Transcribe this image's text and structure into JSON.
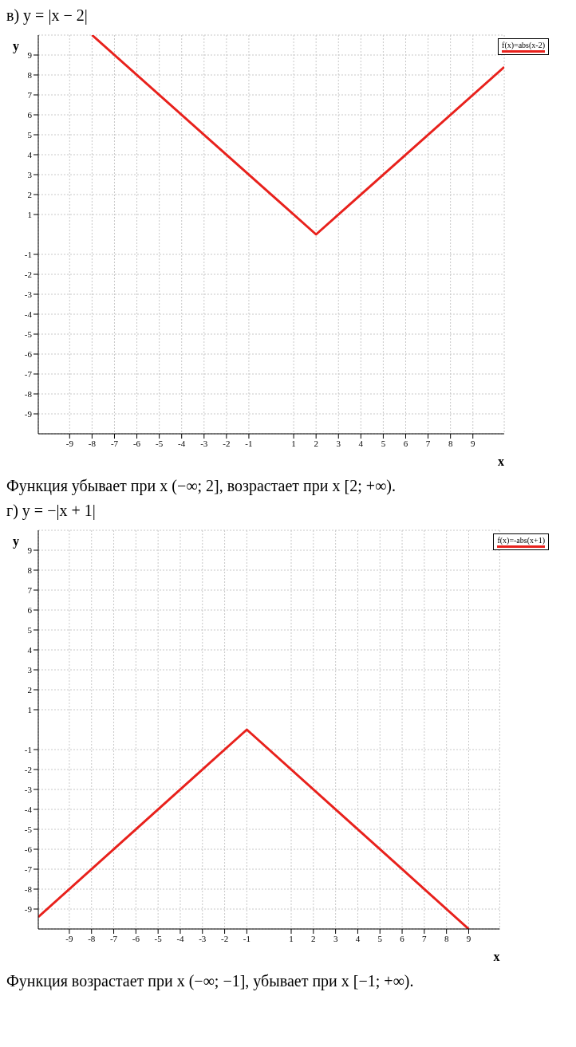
{
  "chart_data": [
    {
      "type": "line",
      "title": "в) y = |x − 2|",
      "xlabel": "x",
      "ylabel": "y",
      "x": [
        -8,
        2,
        10.4
      ],
      "series": [
        {
          "name": "f(x)=abs(x-2)",
          "color": "#e8211c",
          "values": [
            10,
            0,
            8.4
          ]
        }
      ],
      "xlim": [
        -10.4,
        10.4
      ],
      "ylim": [
        -10,
        10
      ],
      "xticks": [
        -9,
        -8,
        -7,
        -6,
        -5,
        -4,
        -3,
        -2,
        -1,
        1,
        2,
        3,
        4,
        5,
        6,
        7,
        8,
        9
      ],
      "yticks": [
        -9,
        -8,
        -7,
        -6,
        -5,
        -4,
        -3,
        -2,
        -1,
        1,
        2,
        3,
        4,
        5,
        6,
        7,
        8,
        9
      ],
      "grid": true,
      "legend": "top right",
      "annotations": [
        "Функция убывает при x (−∞; 2], возрастает при x [2; +∞)."
      ]
    },
    {
      "type": "line",
      "title": "г) y = −|x + 1|",
      "xlabel": "x",
      "ylabel": "y",
      "x": [
        -10.4,
        -1,
        9
      ],
      "series": [
        {
          "name": "f(x)=-abs(x+1)",
          "color": "#e8211c",
          "values": [
            -9.4,
            0,
            -10
          ]
        }
      ],
      "xlim": [
        -10.4,
        10.4
      ],
      "ylim": [
        -10,
        10
      ],
      "xticks": [
        -9,
        -8,
        -7,
        -6,
        -5,
        -4,
        -3,
        -2,
        -1,
        1,
        2,
        3,
        4,
        5,
        6,
        7,
        8,
        9
      ],
      "yticks": [
        -9,
        -8,
        -7,
        -6,
        -5,
        -4,
        -3,
        -2,
        -1,
        1,
        2,
        3,
        4,
        5,
        6,
        7,
        8,
        9
      ],
      "grid": true,
      "legend": "top right",
      "annotations": [
        "Функция возрастает при x (−∞; −1], убывает при x [−1; +∞)."
      ]
    }
  ]
}
